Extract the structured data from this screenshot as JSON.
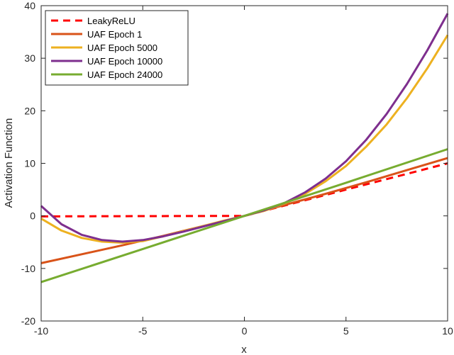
{
  "chart_data": {
    "type": "line",
    "xlabel": "x",
    "ylabel": "Activation Function",
    "xlim": [
      -10,
      10
    ],
    "ylim": [
      -20,
      40
    ],
    "xticks": [
      -10,
      -5,
      0,
      5,
      10
    ],
    "yticks": [
      -20,
      -10,
      0,
      10,
      20,
      30,
      40
    ],
    "grid": false,
    "legend_position": "top-left",
    "series": [
      {
        "name": "LeakyReLU",
        "color": "#ff0000",
        "dash": true,
        "x": [
          -10,
          -5,
          0,
          5,
          10
        ],
        "y": [
          -0.1,
          -0.05,
          0,
          5,
          10
        ]
      },
      {
        "name": "UAF Epoch 1",
        "color": "#d95319",
        "dash": false,
        "x": [
          -10,
          -8,
          -6,
          -4,
          -2,
          0,
          2,
          4,
          6,
          8,
          10
        ],
        "y": [
          -9.0,
          -7.3,
          -5.6,
          -3.8,
          -1.9,
          0,
          2.1,
          4.2,
          6.4,
          8.7,
          11.0
        ]
      },
      {
        "name": "UAF Epoch 5000",
        "color": "#edb120",
        "dash": false,
        "x": [
          -10,
          -9,
          -8,
          -7,
          -6,
          -5,
          -4,
          -3,
          -2,
          -1,
          0,
          1,
          2,
          3,
          4,
          5,
          6,
          7,
          8,
          9,
          10
        ],
        "y": [
          -0.5,
          -2.8,
          -4.2,
          -4.9,
          -5.1,
          -4.8,
          -3.9,
          -2.9,
          -1.9,
          -0.9,
          0,
          1.0,
          2.4,
          4.2,
          6.6,
          9.5,
          13.2,
          17.4,
          22.4,
          28.1,
          34.4
        ]
      },
      {
        "name": "UAF Epoch 10000",
        "color": "#7e2f8e",
        "dash": false,
        "x": [
          -10,
          -9,
          -8,
          -7,
          -6,
          -5,
          -4,
          -3,
          -2,
          -1,
          0,
          1,
          2,
          3,
          4,
          5,
          6,
          7,
          8,
          9,
          10
        ],
        "y": [
          1.9,
          -1.6,
          -3.6,
          -4.6,
          -4.9,
          -4.6,
          -3.9,
          -3.0,
          -2.0,
          -1.0,
          0,
          1.1,
          2.5,
          4.5,
          7.1,
          10.4,
          14.5,
          19.4,
          25.1,
          31.5,
          38.5
        ]
      },
      {
        "name": "UAF Epoch 24000",
        "color": "#77ac30",
        "dash": false,
        "x": [
          -10,
          -5,
          0,
          5,
          10
        ],
        "y": [
          -12.6,
          -6.3,
          0,
          6.3,
          12.7
        ]
      }
    ]
  }
}
